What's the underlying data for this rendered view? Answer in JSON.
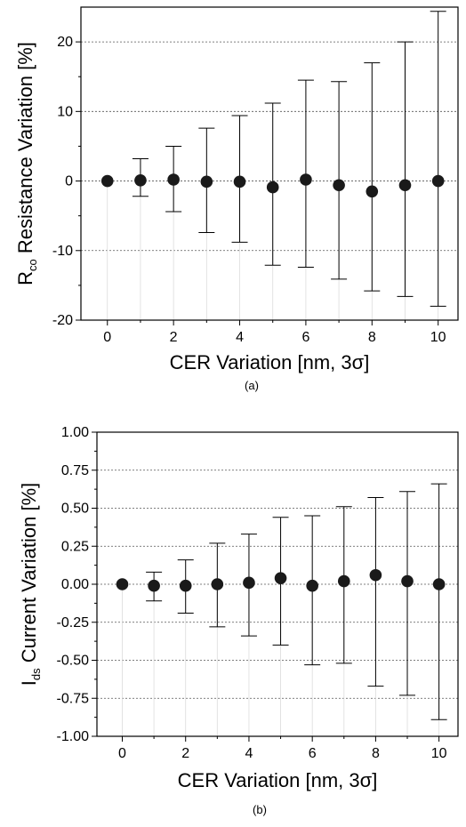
{
  "chart_data": [
    {
      "type": "scatter",
      "panel_label": "(a)",
      "xlabel": "CER Variation [nm, 3σ]",
      "ylabel_main": "R",
      "ylabel_sub": "co",
      "ylabel_rest": " Resistance Variation [%]",
      "xlim": [
        -0.8,
        10.6
      ],
      "ylim": [
        -20,
        25
      ],
      "x_ticks": [
        0,
        2,
        4,
        6,
        8,
        10
      ],
      "x_tick_labels": [
        "0",
        "2",
        "4",
        "6",
        "8",
        "10"
      ],
      "y_ticks": [
        -20,
        -10,
        0,
        10,
        20
      ],
      "y_tick_labels": [
        "-20",
        "-10",
        "0",
        "10",
        "20"
      ],
      "grid_lines_y": [
        -10,
        0,
        10,
        20
      ],
      "grid": "horizontal dotted",
      "marker_color": "#1a1a1a",
      "x": [
        0,
        1,
        2,
        3,
        4,
        5,
        6,
        7,
        8,
        9,
        10
      ],
      "y": [
        0.0,
        0.1,
        0.2,
        -0.1,
        -0.1,
        -0.9,
        0.2,
        -0.6,
        -1.5,
        -0.6,
        0.0
      ],
      "err_high": [
        0.0,
        3.2,
        5.0,
        7.6,
        9.4,
        11.2,
        14.5,
        14.3,
        17.0,
        20.0,
        24.4
      ],
      "err_low": [
        0.0,
        -2.2,
        -4.4,
        -7.4,
        -8.8,
        -12.1,
        -12.4,
        -14.1,
        -15.8,
        -16.6,
        -18.0
      ]
    },
    {
      "type": "scatter",
      "panel_label": "(b)",
      "xlabel": "CER Variation [nm, 3σ]",
      "ylabel_main": "I",
      "ylabel_sub": "ds",
      "ylabel_rest": " Current Variation [%]",
      "xlim": [
        -0.8,
        10.6
      ],
      "ylim": [
        -1.0,
        1.0
      ],
      "x_ticks": [
        0,
        2,
        4,
        6,
        8,
        10
      ],
      "x_tick_labels": [
        "0",
        "2",
        "4",
        "6",
        "8",
        "10"
      ],
      "y_ticks": [
        -1.0,
        -0.75,
        -0.5,
        -0.25,
        0.0,
        0.25,
        0.5,
        0.75,
        1.0
      ],
      "y_tick_labels": [
        "-1.00",
        "-0.75",
        "-0.50",
        "-0.25",
        "0.00",
        "0.25",
        "0.50",
        "0.75",
        "1.00"
      ],
      "grid_lines_y": [
        -0.75,
        -0.5,
        -0.25,
        0.0,
        0.25,
        0.5,
        0.75
      ],
      "grid": "horizontal dotted",
      "marker_color": "#1a1a1a",
      "x": [
        0,
        1,
        2,
        3,
        4,
        5,
        6,
        7,
        8,
        9,
        10
      ],
      "y": [
        0.0,
        -0.01,
        -0.01,
        0.0,
        0.01,
        0.04,
        -0.01,
        0.02,
        0.06,
        0.02,
        0.0
      ],
      "err_high": [
        0.0,
        0.08,
        0.16,
        0.27,
        0.33,
        0.44,
        0.45,
        0.51,
        0.57,
        0.61,
        0.66
      ],
      "err_low": [
        0.0,
        -0.11,
        -0.19,
        -0.28,
        -0.34,
        -0.4,
        -0.53,
        -0.52,
        -0.67,
        -0.73,
        -0.89
      ]
    }
  ]
}
